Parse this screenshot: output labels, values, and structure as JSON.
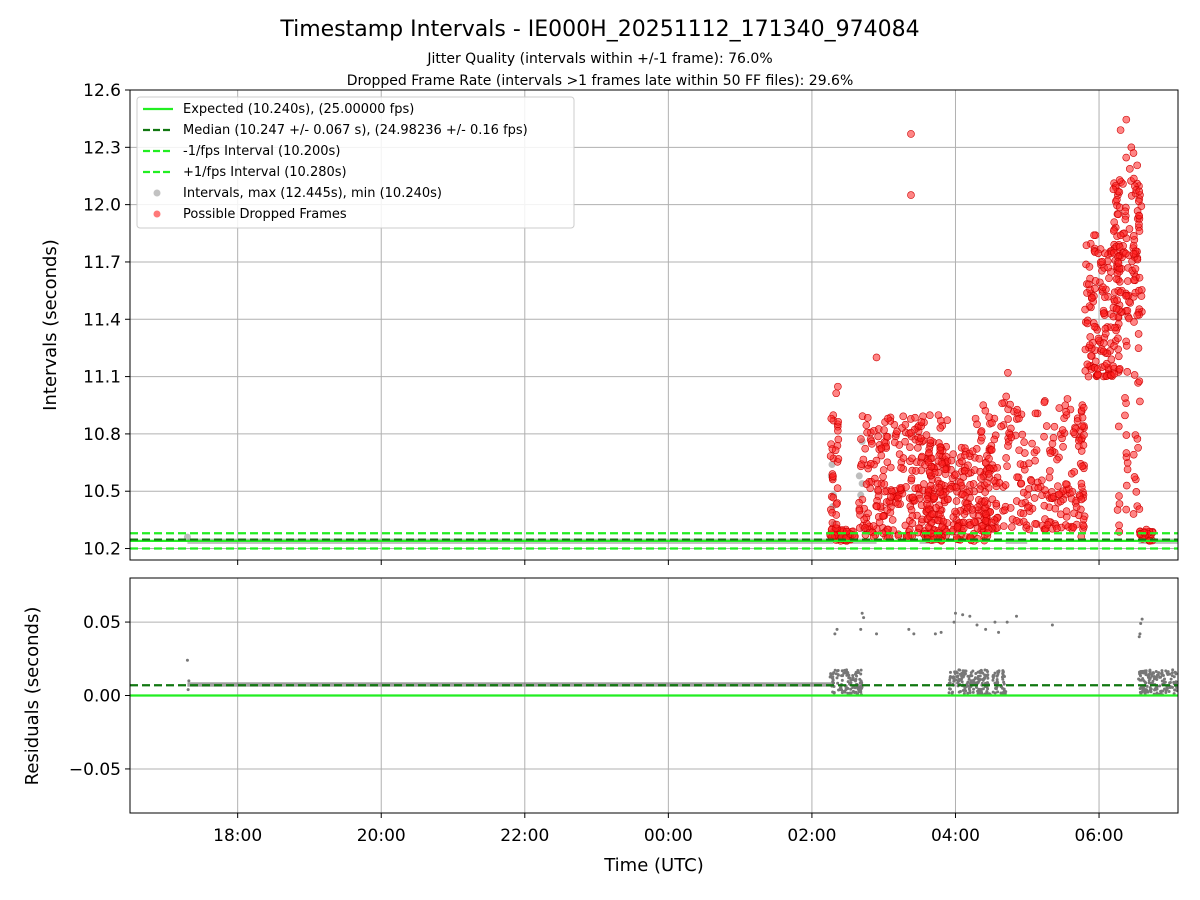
{
  "chart_data": [
    {
      "type": "scatter",
      "title": "Timestamp Intervals - IE000H_20251112_171340_974084",
      "subtitle_lines": [
        "Jitter Quality (intervals within +/-1 frame): 76.0%",
        "Dropped Frame Rate (intervals >1 frames late within 50 FF files): 29.6%"
      ],
      "xlabel": "",
      "ylabel": "Intervals (seconds)",
      "x_range_hours_since_1700": [
        -0.5,
        14.1
      ],
      "ylim": [
        10.14,
        12.6
      ],
      "yticks": [
        10.2,
        10.5,
        10.8,
        11.1,
        11.4,
        11.7,
        12.0,
        12.3,
        12.6
      ],
      "ytick_labels": [
        "10.2",
        "10.5",
        "10.8",
        "11.1",
        "11.4",
        "11.7",
        "12.0",
        "12.3",
        "12.6"
      ],
      "xticks_hours": [
        1,
        3,
        5,
        7,
        9,
        11,
        13
      ],
      "grid": true,
      "legend_position": "upper-left",
      "legend": [
        {
          "label": "Expected (10.240s), (25.00000 fps)",
          "style": "solid",
          "color": "#22ee22"
        },
        {
          "label": "Median (10.247 +/- 0.067 s), (24.98236 +/- 0.16 fps)",
          "style": "dashed",
          "color": "#117711"
        },
        {
          "label": "-1/fps Interval (10.200s)",
          "style": "dashed",
          "color": "#22ee22"
        },
        {
          "label": "+1/fps Interval (10.280s)",
          "style": "dashed",
          "color": "#22ee22"
        },
        {
          "label": "Intervals, max (12.445s), min (10.240s)",
          "style": "marker",
          "color": "#999999"
        },
        {
          "label": "Possible Dropped Frames",
          "style": "marker",
          "color": "#ff2020"
        }
      ],
      "reference_lines": [
        {
          "name": "expected",
          "y": 10.24,
          "color": "#22ee22",
          "dashed": false
        },
        {
          "name": "median",
          "y": 10.247,
          "color": "#117711",
          "dashed": true
        },
        {
          "name": "minus-one-frame",
          "y": 10.2,
          "color": "#22ee22",
          "dashed": true
        },
        {
          "name": "plus-one-frame",
          "y": 10.28,
          "color": "#22ee22",
          "dashed": true
        }
      ],
      "series": [
        {
          "kind": "normal-intervals",
          "color": "#888888",
          "segments": [
            [
              0.3,
              9.3
            ],
            [
              9.55,
              9.9
            ],
            [
              10.5,
              10.7
            ],
            [
              11.7,
              12.0
            ],
            [
              13.55,
              14.1
            ]
          ],
          "points": [
            [
              9.28,
              10.64
            ],
            [
              9.27,
              10.58
            ],
            [
              9.3,
              10.48
            ],
            [
              9.29,
              10.42
            ],
            [
              9.31,
              10.33
            ],
            [
              9.7,
              10.76
            ],
            [
              9.7,
              10.54
            ],
            [
              9.68,
              10.48
            ],
            [
              9.72,
              10.3
            ],
            [
              9.66,
              10.58
            ],
            [
              0.3,
              10.26
            ]
          ]
        },
        {
          "kind": "dropped-frames",
          "color": "#ff2020",
          "clusters": [
            {
              "x": [
                9.25,
                9.6
              ],
              "y": [
                10.24,
                10.3
              ],
              "n": 50
            },
            {
              "x": [
                9.65,
                10.9
              ],
              "y": [
                10.26,
                10.9
              ],
              "n": 280
            },
            {
              "x": [
                10.6,
                11.5
              ],
              "y": [
                10.24,
                10.75
              ],
              "n": 210
            },
            {
              "x": [
                11.3,
                12.8
              ],
              "y": [
                10.3,
                11.0
              ],
              "n": 240
            },
            {
              "x": [
                12.8,
                13.3
              ],
              "y": [
                11.1,
                11.8
              ],
              "n": 140
            },
            {
              "x": [
                13.2,
                13.6
              ],
              "y": [
                11.4,
                12.25
              ],
              "n": 90
            },
            {
              "x": [
                13.55,
                13.75
              ],
              "y": [
                10.24,
                10.3
              ],
              "n": 25
            }
          ],
          "points": [
            [
              10.38,
              12.37
            ],
            [
              10.38,
              12.05
            ],
            [
              13.38,
              12.445
            ],
            [
              13.3,
              12.39
            ],
            [
              13.45,
              12.3
            ],
            [
              13.48,
              12.27
            ],
            [
              13.2,
              12.08
            ],
            [
              12.95,
              11.84
            ],
            [
              12.93,
              11.84
            ],
            [
              11.28,
              10.88
            ],
            [
              11.3,
              10.85
            ],
            [
              11.73,
              11.12
            ],
            [
              11.65,
              10.96
            ],
            [
              9.27,
              10.88
            ],
            [
              9.9,
              11.2
            ]
          ],
          "scatter_columns": [
            9.28,
            9.35,
            12.77,
            13.27,
            13.38,
            13.5,
            13.55
          ]
        }
      ]
    },
    {
      "type": "scatter",
      "title": "",
      "xlabel": "Time (UTC)",
      "ylabel": "Residuals (seconds)",
      "ylim": [
        -0.08,
        0.08
      ],
      "yticks": [
        -0.05,
        0.0,
        0.05
      ],
      "ytick_labels": [
        "−0.05",
        "0.00",
        "0.05"
      ],
      "xticks_hours": [
        1,
        3,
        5,
        7,
        9,
        11,
        13
      ],
      "xtick_labels": [
        "18:00",
        "20:00",
        "22:00",
        "00:00",
        "02:00",
        "04:00",
        "06:00"
      ],
      "grid": true,
      "reference_lines": [
        {
          "name": "zero",
          "y": 0.0,
          "color": "#22ee22",
          "dashed": false
        },
        {
          "name": "median-residual",
          "y": 0.007,
          "color": "#117711",
          "dashed": true
        }
      ],
      "series": [
        {
          "kind": "residuals",
          "color": "#777777",
          "baseline_segments": [
            [
              0.3,
              9.3
            ]
          ],
          "cluster_ranges": [
            [
              9.25,
              9.7
            ],
            [
              10.9,
              11.7
            ],
            [
              13.55,
              14.1
            ]
          ],
          "points": [
            [
              0.3,
              0.024
            ],
            [
              0.32,
              0.01
            ],
            [
              0.31,
              0.004
            ],
            [
              9.32,
              0.042
            ],
            [
              9.35,
              0.045
            ],
            [
              9.7,
              0.056
            ],
            [
              9.72,
              0.053
            ],
            [
              9.68,
              0.045
            ],
            [
              9.9,
              0.042
            ],
            [
              10.35,
              0.045
            ],
            [
              10.42,
              0.042
            ],
            [
              10.72,
              0.042
            ],
            [
              10.8,
              0.043
            ],
            [
              10.98,
              0.05
            ],
            [
              11.0,
              0.056
            ],
            [
              11.1,
              0.055
            ],
            [
              11.2,
              0.054
            ],
            [
              11.3,
              0.048
            ],
            [
              11.42,
              0.045
            ],
            [
              11.55,
              0.05
            ],
            [
              11.6,
              0.043
            ],
            [
              11.72,
              0.05
            ],
            [
              11.85,
              0.054
            ],
            [
              12.35,
              0.048
            ],
            [
              13.6,
              0.052
            ],
            [
              13.58,
              0.049
            ],
            [
              13.57,
              0.042
            ],
            [
              13.56,
              0.04
            ]
          ]
        }
      ]
    }
  ]
}
